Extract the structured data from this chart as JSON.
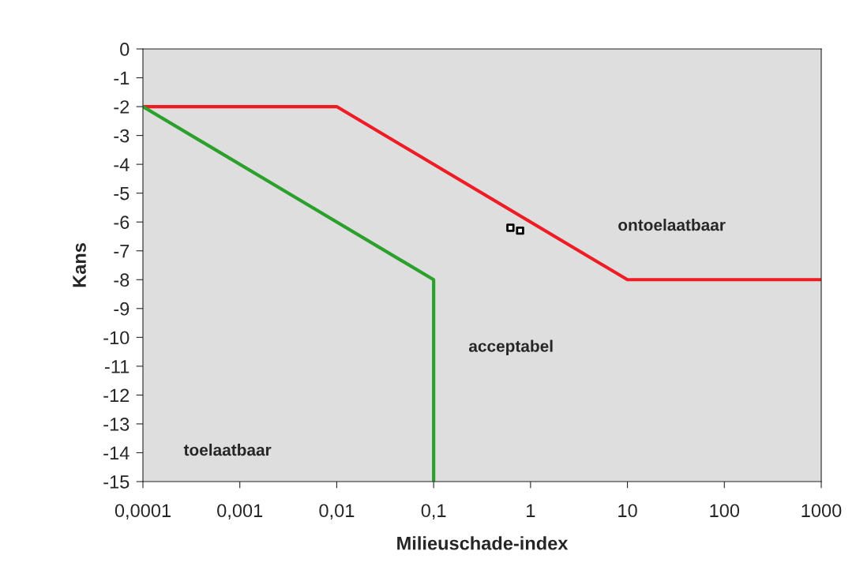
{
  "chart_data": {
    "type": "line",
    "xlabel": "Milieuschade-index",
    "ylabel": "Kans",
    "series": [
      {
        "color": "#ee1c25",
        "x": [
          0.0001,
          0.01,
          10,
          1000
        ],
        "values": [
          -2,
          -2,
          -8,
          -8
        ]
      },
      {
        "color": "#2ca02c",
        "x": [
          0.0001,
          0.1,
          0.1
        ],
        "values": [
          -2,
          -8,
          -15
        ]
      },
      {
        "type": "scatter",
        "color": "#000000",
        "marker": "square",
        "x": [
          0.62,
          0.78
        ],
        "values": [
          -6.2,
          -6.3
        ]
      }
    ],
    "annotations": [
      "ontoelaatbaar",
      "acceptabel",
      "toelaatbaar"
    ],
    "log": "x",
    "grid": false,
    "xlim": [
      0.0001,
      1000
    ],
    "xticks": [
      {
        "value": 0.0001,
        "label": "0,0001"
      },
      {
        "value": 0.001,
        "label": "0,001"
      },
      {
        "value": 0.01,
        "label": "0,01"
      },
      {
        "value": 0.1,
        "label": "0,1"
      },
      1,
      10,
      100,
      1000
    ],
    "ylim": [
      -15,
      0
    ],
    "yticks": [
      0,
      -1,
      -2,
      -3,
      -4,
      -5,
      -6,
      -7,
      -8,
      -9,
      -10,
      -11,
      -12,
      -13,
      -14,
      -15
    ]
  }
}
